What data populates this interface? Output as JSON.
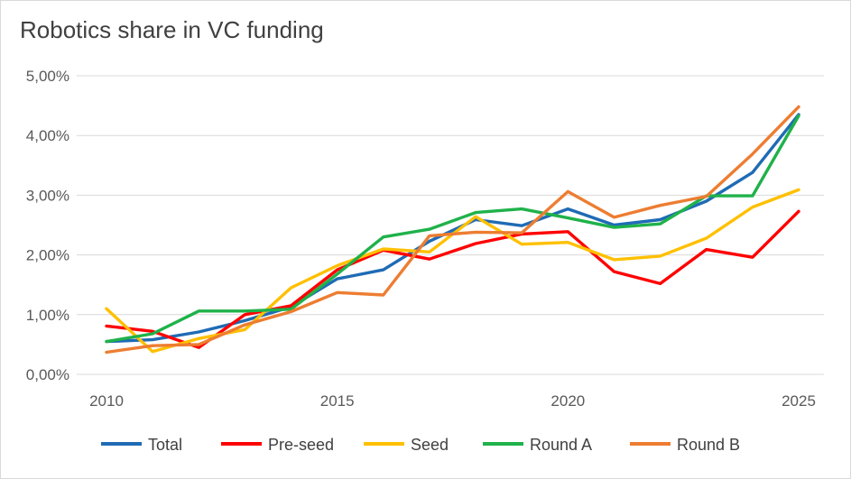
{
  "chart_data": {
    "type": "line",
    "title": "Robotics share in VC funding",
    "xlabel": "",
    "ylabel": "",
    "x": [
      2010,
      2011,
      2012,
      2013,
      2014,
      2015,
      2016,
      2017,
      2018,
      2019,
      2020,
      2021,
      2022,
      2023,
      2024,
      2025
    ],
    "xticks": [
      2010,
      2015,
      2020,
      2025
    ],
    "xtick_labels": [
      "2010",
      "2015",
      "2020",
      "2025"
    ],
    "ylim": [
      0,
      5
    ],
    "yticks": [
      0,
      1,
      2,
      3,
      4,
      5
    ],
    "ytick_labels": [
      "0,00%",
      "1,00%",
      "2,00%",
      "3,00%",
      "4,00%",
      "5,00%"
    ],
    "grid": "horizontal",
    "legend_position": "bottom",
    "series": [
      {
        "name": "Total",
        "color": "#1f6bb5",
        "values": [
          0.55,
          0.58,
          0.71,
          0.9,
          1.13,
          1.6,
          1.75,
          2.23,
          2.59,
          2.49,
          2.77,
          2.5,
          2.59,
          2.9,
          3.38,
          4.35
        ]
      },
      {
        "name": "Pre-seed",
        "color": "#ff0000",
        "values": [
          0.81,
          0.72,
          0.45,
          1.0,
          1.15,
          1.75,
          2.08,
          1.93,
          2.19,
          2.35,
          2.39,
          1.72,
          1.52,
          2.09,
          1.96,
          2.73
        ]
      },
      {
        "name": "Seed",
        "color": "#ffc000",
        "values": [
          1.1,
          0.38,
          0.6,
          0.75,
          1.45,
          1.82,
          2.1,
          2.05,
          2.64,
          2.18,
          2.21,
          1.92,
          1.98,
          2.28,
          2.8,
          3.09
        ]
      },
      {
        "name": "Round A",
        "color": "#1fb24a",
        "values": [
          0.55,
          0.68,
          1.06,
          1.06,
          1.09,
          1.68,
          2.3,
          2.43,
          2.71,
          2.77,
          2.62,
          2.46,
          2.52,
          2.99,
          2.99,
          4.33
        ]
      },
      {
        "name": "Round B",
        "color": "#ed7d31",
        "values": [
          0.37,
          0.48,
          0.5,
          0.83,
          1.05,
          1.37,
          1.33,
          2.32,
          2.38,
          2.37,
          3.06,
          2.63,
          2.83,
          2.98,
          3.69,
          4.48
        ]
      }
    ]
  }
}
